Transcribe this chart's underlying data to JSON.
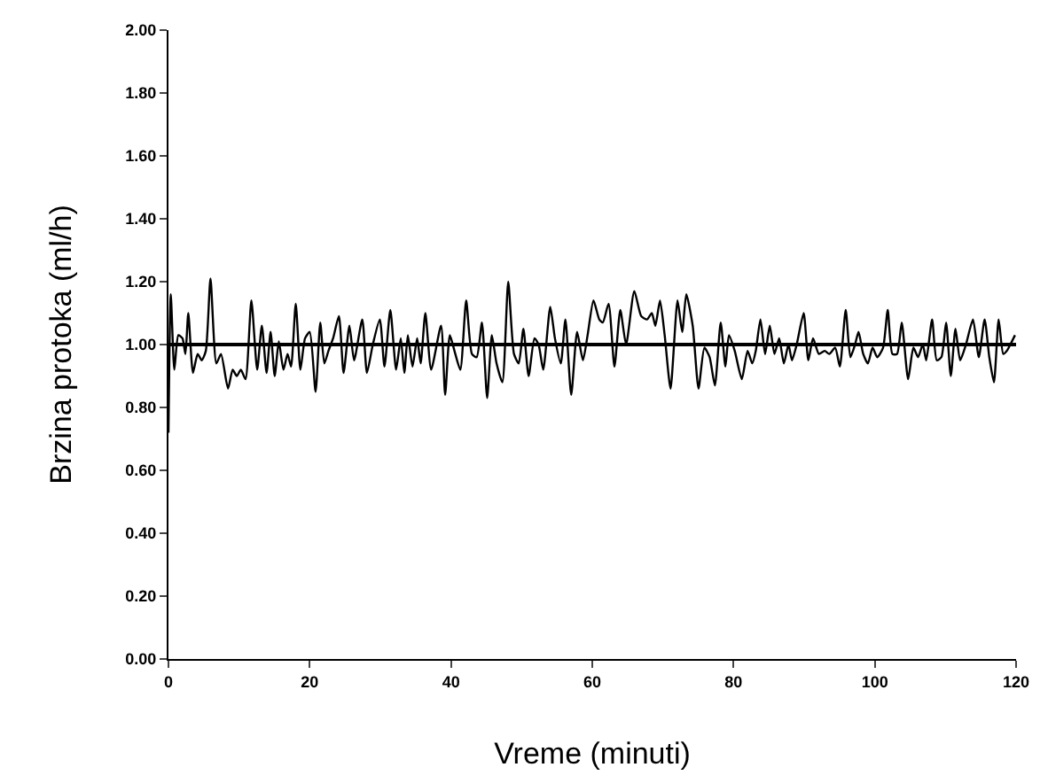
{
  "chart_data": {
    "type": "line",
    "xlabel": "Vreme (minuti)",
    "ylabel": "Brzina protoka (ml/h)",
    "xlim": [
      0,
      120
    ],
    "xticks": [
      0,
      20,
      40,
      60,
      80,
      100,
      120
    ],
    "ylim": [
      0,
      2
    ],
    "yticks": [
      {
        "value": 0,
        "label": "0.00"
      },
      {
        "value": 0.2,
        "label": "0.20"
      },
      {
        "value": 0.4,
        "label": "0.40"
      },
      {
        "value": 0.6,
        "label": "0.60"
      },
      {
        "value": 0.8,
        "label": "0.80"
      },
      {
        "value": 1.0,
        "label": "1.00"
      },
      {
        "value": 1.2,
        "label": "1.20"
      },
      {
        "value": 1.4,
        "label": "1.40"
      },
      {
        "value": 1.6,
        "label": "1.60"
      },
      {
        "value": 1.8,
        "label": "1.80"
      },
      {
        "value": 2.0,
        "label": "2.00"
      }
    ],
    "marker": "none",
    "line_style": "solid",
    "ref_lines": [
      {
        "axis": "y",
        "value": 1.0,
        "color": "#000000"
      }
    ],
    "series": [
      {
        "color": "#000000",
        "x": [
          0,
          0.33,
          0.83,
          1.4,
          1.98,
          2.4,
          2.81,
          3.47,
          4.13,
          4.71,
          5.29,
          5.95,
          6.78,
          7.44,
          8.43,
          9.09,
          9.67,
          10.25,
          10.91,
          11.74,
          12.56,
          13.22,
          13.89,
          14.46,
          15.04,
          15.62,
          16.28,
          16.86,
          17.36,
          18.02,
          18.68,
          19.34,
          20.0,
          20.83,
          21.49,
          22.07,
          22.65,
          23.31,
          24.13,
          24.79,
          25.62,
          26.28,
          27.44,
          28.1,
          28.93,
          29.92,
          30.58,
          31.41,
          32.23,
          32.89,
          33.39,
          33.89,
          34.55,
          35.21,
          35.7,
          36.37,
          37.19,
          38.59,
          39.17,
          39.83,
          40.49,
          41.32,
          42.15,
          42.97,
          43.64,
          44.38,
          45.12,
          45.78,
          46.45,
          47.27,
          48.1,
          48.92,
          49.59,
          50.25,
          50.99,
          51.82,
          52.4,
          53.06,
          54.05,
          54.71,
          55.54,
          56.2,
          57.02,
          57.85,
          58.68,
          59.34,
          60.17,
          60.99,
          61.49,
          62.31,
          63.14,
          63.97,
          64.79,
          65.95,
          66.94,
          67.77,
          68.43,
          68.93,
          69.59,
          70.25,
          71.08,
          72.07,
          72.73,
          73.31,
          74.22,
          75.04,
          75.87,
          76.61,
          77.36,
          78.18,
          78.85,
          79.35,
          80.17,
          81.17,
          81.99,
          82.65,
          83.15,
          83.81,
          84.47,
          85.13,
          85.79,
          86.46,
          87.12,
          87.78,
          88.27,
          88.94,
          89.93,
          90.59,
          91.25,
          92.08,
          92.9,
          93.56,
          94.39,
          95.05,
          95.88,
          96.54,
          97.2,
          97.7,
          98.36,
          99.02,
          99.68,
          100.34,
          101.17,
          101.83,
          102.49,
          103.15,
          103.81,
          104.72,
          105.46,
          106.13,
          106.79,
          107.28,
          108.11,
          108.77,
          109.43,
          110.09,
          110.76,
          111.42,
          112.08,
          112.9,
          113.9,
          114.72,
          115.55,
          116.21,
          116.87,
          117.53,
          118.19,
          118.69,
          119.19,
          119.85
        ],
        "values": [
          0.72,
          1.16,
          0.92,
          1.03,
          1.02,
          0.97,
          1.1,
          0.91,
          0.97,
          0.95,
          0.98,
          1.21,
          0.94,
          0.97,
          0.86,
          0.92,
          0.9,
          0.92,
          0.89,
          1.14,
          0.92,
          1.06,
          0.91,
          1.04,
          0.9,
          1.01,
          0.92,
          0.97,
          0.93,
          1.13,
          0.92,
          1.02,
          1.04,
          0.85,
          1.07,
          0.94,
          0.98,
          1.02,
          1.09,
          0.91,
          1.06,
          0.95,
          1.08,
          0.91,
          1.0,
          1.08,
          0.93,
          1.11,
          0.92,
          1.02,
          0.91,
          1.03,
          0.93,
          1.02,
          0.94,
          1.1,
          0.92,
          1.06,
          0.84,
          1.03,
          0.98,
          0.92,
          1.14,
          0.97,
          0.96,
          1.07,
          0.83,
          1.03,
          0.94,
          0.88,
          1.2,
          0.97,
          0.94,
          1.05,
          0.9,
          1.02,
          1.0,
          0.92,
          1.12,
          1.02,
          0.94,
          1.08,
          0.84,
          1.04,
          0.95,
          1.03,
          1.14,
          1.08,
          1.07,
          1.13,
          0.93,
          1.11,
          1.0,
          1.17,
          1.09,
          1.08,
          1.1,
          1.06,
          1.14,
          1.03,
          0.86,
          1.14,
          1.04,
          1.16,
          1.06,
          0.86,
          0.99,
          0.96,
          0.87,
          1.07,
          0.93,
          1.03,
          0.98,
          0.89,
          0.98,
          0.94,
          0.98,
          1.08,
          0.97,
          1.06,
          0.97,
          1.02,
          0.94,
          1.0,
          0.95,
          1.0,
          1.1,
          0.95,
          1.02,
          0.97,
          0.98,
          0.97,
          0.99,
          0.93,
          1.11,
          0.96,
          1.0,
          1.04,
          0.97,
          0.94,
          0.99,
          0.96,
          0.99,
          1.11,
          0.97,
          0.97,
          1.07,
          0.89,
          0.99,
          0.96,
          1.0,
          0.95,
          1.08,
          0.95,
          0.96,
          1.07,
          0.9,
          1.05,
          0.95,
          1.0,
          1.08,
          0.96,
          1.08,
          0.96,
          0.88,
          1.08,
          0.97,
          0.98,
          1.0,
          1.03
        ]
      }
    ]
  }
}
